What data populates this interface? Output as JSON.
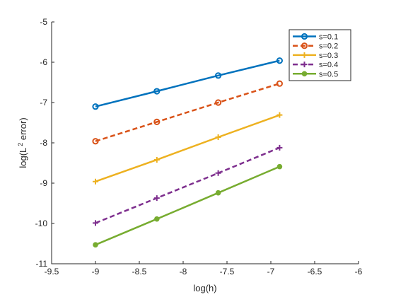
{
  "chart_data": {
    "type": "line",
    "xlabel": "log(h)",
    "ylabel_main": "log(L",
    "ylabel_sup": "2",
    "ylabel_tail": " error)",
    "xlim": [
      -9.5,
      -6
    ],
    "ylim": [
      -11,
      -5
    ],
    "xticks": [
      "-9.5",
      "-9",
      "-8.5",
      "-8",
      "-7.5",
      "-7",
      "-6.5",
      "-6"
    ],
    "yticks": [
      "-11",
      "-10",
      "-9",
      "-8",
      "-7",
      "-6",
      "-5"
    ],
    "x": [
      -9.0,
      -8.3,
      -7.6,
      -6.9
    ],
    "legend_position": "top-right",
    "series": [
      {
        "name": "s=0.1",
        "values": [
          -7.1,
          -6.72,
          -6.33,
          -5.96
        ],
        "color": "#0072bd",
        "dash": "solid",
        "marker": "circle-open"
      },
      {
        "name": "s=0.2",
        "values": [
          -7.96,
          -7.48,
          -7.0,
          -6.53
        ],
        "color": "#d95319",
        "dash": "dashed",
        "marker": "circle-open"
      },
      {
        "name": "s=0.3",
        "values": [
          -8.96,
          -8.42,
          -7.86,
          -7.31
        ],
        "color": "#edb120",
        "dash": "solid",
        "marker": "plus"
      },
      {
        "name": "s=0.4",
        "values": [
          -9.99,
          -9.37,
          -8.75,
          -8.12
        ],
        "color": "#7e2f8e",
        "dash": "dashed",
        "marker": "plus"
      },
      {
        "name": "s=0.5",
        "values": [
          -10.53,
          -9.89,
          -9.24,
          -8.59
        ],
        "color": "#77ac30",
        "dash": "solid",
        "marker": "dot"
      }
    ]
  }
}
